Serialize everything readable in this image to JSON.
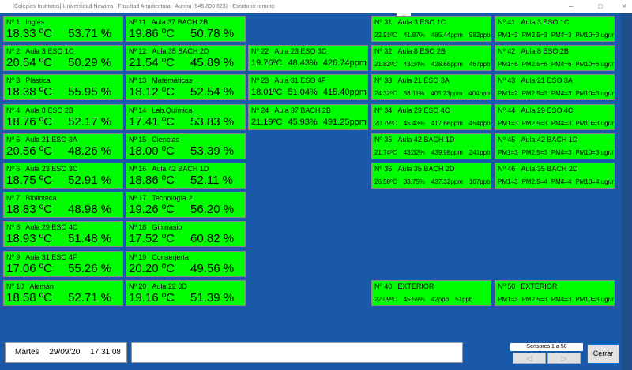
{
  "window": {
    "title": "[Colegios-Institutos] Universidad Navarra - Facultad Arquitectura - Aurora (545 893 623) - Escritorio remoto"
  },
  "columns": [
    [
      {
        "id": "Nº 1",
        "name": "Inglés",
        "readings": [
          "18.33 ºC",
          "53.71 %"
        ]
      },
      {
        "id": "Nº 2",
        "name": "Aula 3 ESO 1C",
        "readings": [
          "20.54 ºC",
          "50.29 %"
        ]
      },
      {
        "id": "Nº 3",
        "name": "Plástica",
        "readings": [
          "18.38 ºC",
          "55.95 %"
        ]
      },
      {
        "id": "Nº 4",
        "name": "Aula 8 ESO 2B",
        "readings": [
          "18.76 ºC",
          "52.17 %"
        ]
      },
      {
        "id": "Nº 5",
        "name": "Aula 21 ESO 3A",
        "readings": [
          "20.56 ºC",
          "48.26 %"
        ]
      },
      {
        "id": "Nº 6",
        "name": "Aula 23 ESO 3C",
        "readings": [
          "18.75 ºC",
          "52.91 %"
        ]
      },
      {
        "id": "Nº 7",
        "name": "Biblioteca",
        "readings": [
          "18.83 ºC",
          "48.98 %"
        ]
      },
      {
        "id": "Nº 8",
        "name": "Aula 29 ESO 4C",
        "readings": [
          "18.93 ºC",
          "51.48 %"
        ]
      },
      {
        "id": "Nº 9",
        "name": "Aula 31 ESO 4F",
        "readings": [
          "17.06 ºC",
          "55.26 %"
        ]
      },
      {
        "id": "Nº 10",
        "name": "Alemán",
        "readings": [
          "18.58 ºC",
          "52.71 %"
        ]
      }
    ],
    [
      {
        "id": "Nº 11",
        "name": "Aula 37 BACH 2B",
        "readings": [
          "19.86 ºC",
          "50.78 %"
        ]
      },
      {
        "id": "Nº 12",
        "name": "Aula 35 BACH 2D",
        "readings": [
          "21.54 ºC",
          "45.89 %"
        ]
      },
      {
        "id": "Nº 13",
        "name": "Matemáticas",
        "readings": [
          "18.12 ºC",
          "52.54 %"
        ]
      },
      {
        "id": "Nº 14",
        "name": "Lab.Química",
        "readings": [
          "17.41 ºC",
          "53.83 %"
        ]
      },
      {
        "id": "Nº 15",
        "name": "Ciencias",
        "readings": [
          "18.00 ºC",
          "53.39 %"
        ]
      },
      {
        "id": "Nº 16",
        "name": "Aula 42 BACH 1D",
        "readings": [
          "18.86 ºC",
          "52.11 %"
        ]
      },
      {
        "id": "Nº 17",
        "name": "Tecnología 2",
        "readings": [
          "19.26 ºC",
          "56.20 %"
        ]
      },
      {
        "id": "Nº 18",
        "name": "Gimnasio",
        "readings": [
          "17.52 ºC",
          "60.82 %"
        ]
      },
      {
        "id": "Nº 19",
        "name": "Conserjería",
        "readings": [
          "20.20 ºC",
          "49.56 %"
        ]
      },
      {
        "id": "Nº 20",
        "name": "Aula 22 3D",
        "readings": [
          "19.16 ºC",
          "51.39 %"
        ]
      }
    ],
    [
      {
        "id": "Nº 22",
        "name": "Aula 23 ESO 3C",
        "readings": [
          "19.76ºC",
          "48.43%",
          "426.74ppm"
        ]
      },
      {
        "id": "Nº 23",
        "name": "Aula 31 ESO 4F",
        "readings": [
          "18.01ºC",
          "51.04%",
          "415.40ppm"
        ]
      },
      {
        "id": "Nº 24",
        "name": "Aula 37 BACH 2B",
        "readings": [
          "21.19ºC",
          "45.93%",
          "491.25ppm"
        ]
      }
    ],
    [
      {
        "id": "Nº 31",
        "name": "Aula 3 ESO 1C",
        "readings": [
          "22.91ºC",
          "41.87%",
          "485.44ppm",
          "582ppb"
        ]
      },
      {
        "id": "Nº 32",
        "name": "Aula 8 ESO 2B",
        "readings": [
          "21.82ºC",
          "43.34%",
          "428.65ppm",
          "467ppb"
        ]
      },
      {
        "id": "Nº 33",
        "name": "Aula 21 ESO 3A",
        "readings": [
          "24.32ºC",
          "38.11%",
          "405.23ppm",
          "404ppb"
        ]
      },
      {
        "id": "Nº 34",
        "name": "Aula 29 ESO 4C",
        "readings": [
          "20.79ºC",
          "45.43%",
          "417.66ppm",
          "454ppb"
        ]
      },
      {
        "id": "Nº 35",
        "name": "Aula 42 BACH 1D",
        "readings": [
          "21.74ºC",
          "43.32%",
          "439.98ppm",
          "241ppb"
        ]
      },
      {
        "id": "Nº 36",
        "name": "Aula 35 BACH 2D",
        "readings": [
          "26.58ºC",
          "33.75%",
          "437.32ppm",
          "107ppb"
        ]
      },
      {
        "id": "Nº 40",
        "name": "EXTERIOR",
        "readings": [
          "22.09ºC",
          "45.59%",
          "42ppb",
          "51ppb"
        ]
      }
    ],
    [
      {
        "id": "Nº 41",
        "name": "Aula 3 ESO 1C",
        "readings": [
          "PM1=3",
          "PM2.5=3",
          "PM4=3",
          "PM10=3 ugr/m3"
        ]
      },
      {
        "id": "Nº 42",
        "name": "Aula 8 ESO 2B",
        "readings": [
          "PM1=6",
          "PM2.5=6",
          "PM4=6",
          "PM10=6 ugr/m3"
        ]
      },
      {
        "id": "Nº 43",
        "name": "Aula 21 ESO 3A",
        "readings": [
          "PM1=2",
          "PM2.5=3",
          "PM4=3",
          "PM10=3 ugr/m3"
        ]
      },
      {
        "id": "Nº 44",
        "name": "Aula 29 ESO 4C",
        "readings": [
          "PM1=3",
          "PM2.5=3",
          "PM4=3",
          "PM10=3 ugr/m3"
        ]
      },
      {
        "id": "Nº 45",
        "name": "Aula 42 BACH 1D",
        "readings": [
          "PM1=3",
          "PM2.5=3",
          "PM4=3",
          "PM10=3 ugr/m3"
        ]
      },
      {
        "id": "Nº 46",
        "name": "Aula 35 BACH 2D",
        "readings": [
          "PM1=3",
          "PM2.5=4",
          "PM4=4",
          "PM10=4 ugr/m3"
        ]
      },
      {
        "id": "Nº 50",
        "name": "EXTERIOR",
        "readings": [
          "PM1=3",
          "PM2.5=3",
          "PM4=3",
          "PM10=3 ugr/m3"
        ]
      }
    ]
  ],
  "footer": {
    "day": "Martes",
    "date": "29/09/20",
    "time": "17:31:08",
    "sensor_range": "Sensores 1 a 50",
    "close_button": "Cerrar"
  }
}
